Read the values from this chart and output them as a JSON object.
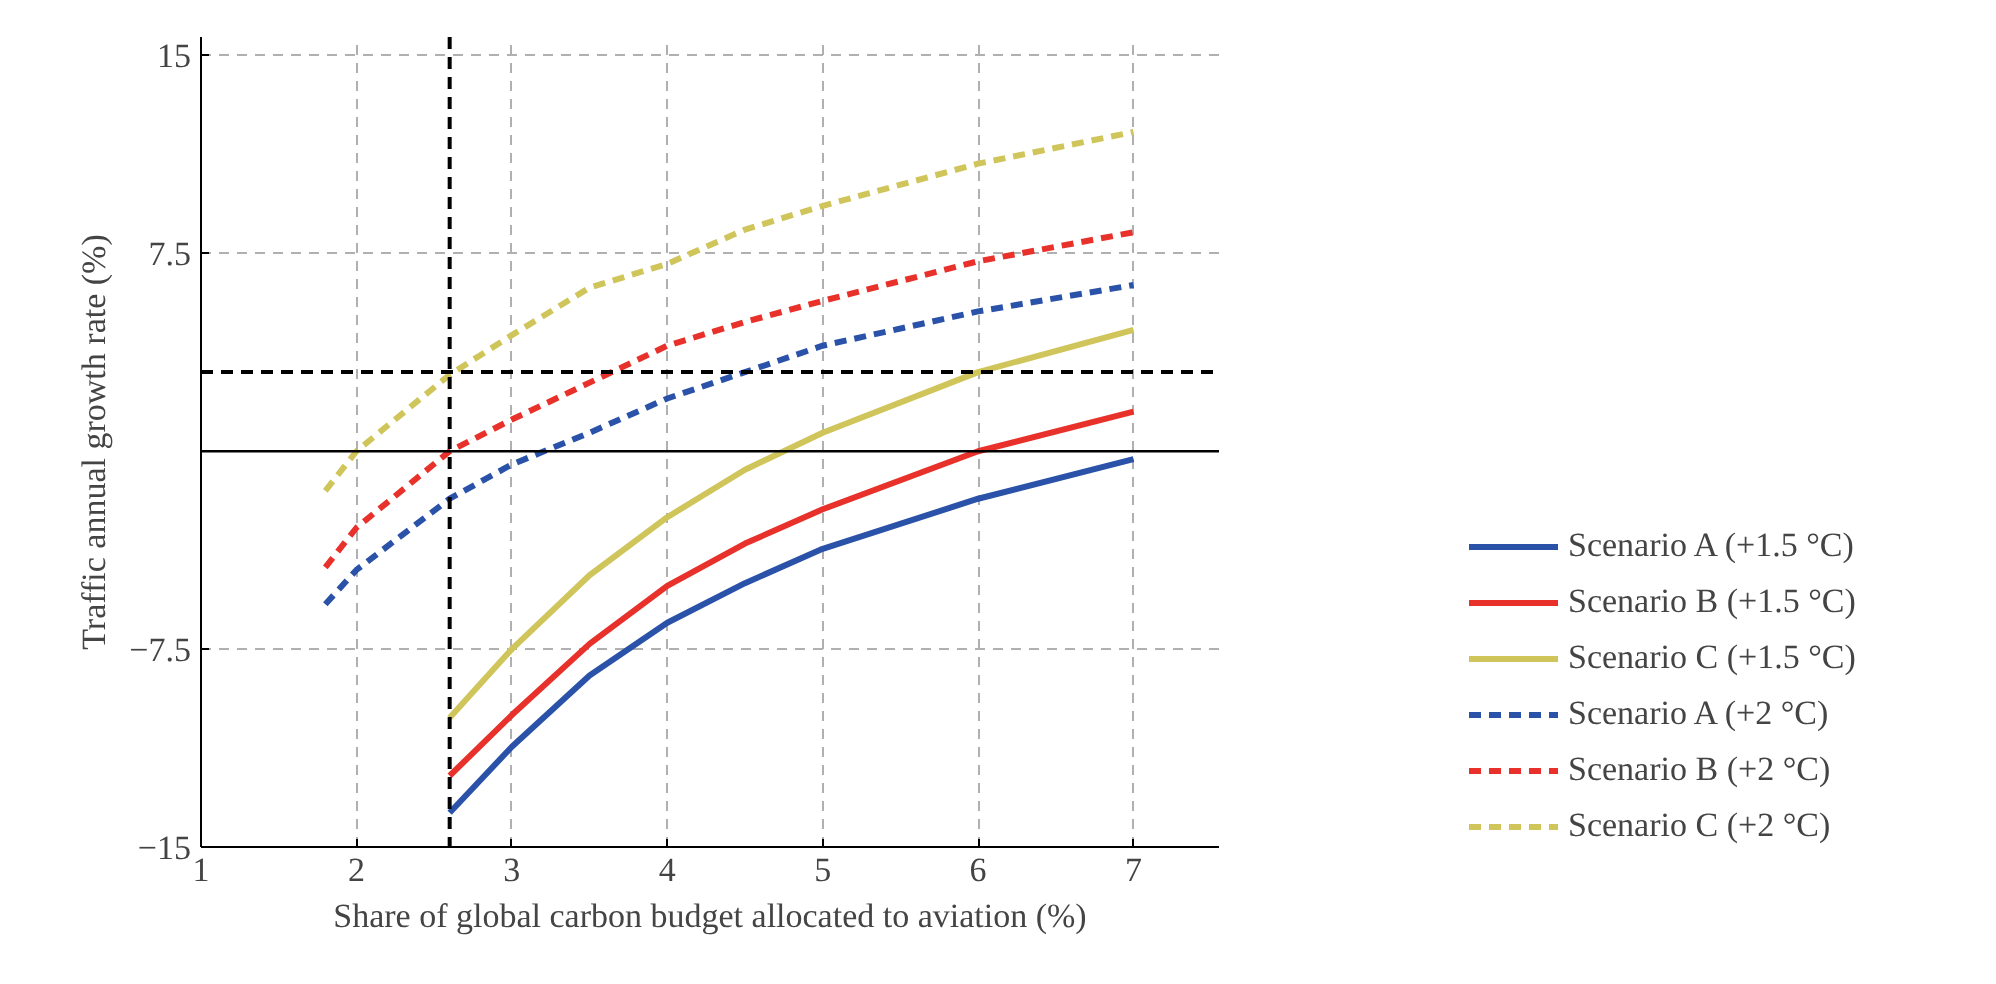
{
  "chart_data": {
    "type": "line",
    "xlabel": "Share of global carbon budget allocated to aviation (%)",
    "ylabel": "Traffic annual growth rate (%)",
    "xlim": [
      1,
      7.55
    ],
    "ylim": [
      -15,
      15.7
    ],
    "xticks": [
      1,
      2,
      3,
      4,
      5,
      6,
      7
    ],
    "yticks": [
      {
        "value": -15,
        "label": "−15"
      },
      {
        "value": -7.5,
        "label": "−7.5"
      },
      7.5,
      15
    ],
    "grid": true,
    "legend": "right",
    "marker": "none",
    "series": [
      {
        "name": "Scenario A (+1.5 °C)",
        "color": "#2a52a8",
        "line_style": "solid",
        "x": [
          2.6,
          3,
          3.5,
          4,
          4.5,
          5,
          6,
          7
        ],
        "values": [
          -13.7,
          -11.2,
          -8.5,
          -6.5,
          -5.0,
          -3.7,
          -1.8,
          -0.3
        ]
      },
      {
        "name": "Scenario B (+1.5 °C)",
        "color": "#e8312a",
        "line_style": "solid",
        "x": [
          2.6,
          3,
          3.5,
          4,
          4.5,
          5,
          6,
          7
        ],
        "values": [
          -12.3,
          -10.0,
          -7.3,
          -5.1,
          -3.5,
          -2.2,
          0,
          1.5
        ]
      },
      {
        "name": "Scenario C (+1.5 °C)",
        "color": "#cfc55a",
        "line_style": "solid",
        "x": [
          2.6,
          3,
          3.5,
          4,
          4.5,
          5,
          6,
          7
        ],
        "values": [
          -10.1,
          -7.5,
          -4.7,
          -2.5,
          -0.7,
          0.7,
          3.0,
          4.6
        ]
      },
      {
        "name": "Scenario A (+2 °C)",
        "color": "#2a52a8",
        "line_style": "dashed",
        "x": [
          1.8,
          2,
          2.6,
          3,
          3.5,
          4,
          4.5,
          5,
          6,
          7
        ],
        "values": [
          -5.8,
          -4.5,
          -1.8,
          -0.5,
          0.7,
          2.0,
          3.0,
          4.0,
          5.3,
          6.3
        ]
      },
      {
        "name": "Scenario B (+2 °C)",
        "color": "#e8312a",
        "line_style": "dashed",
        "x": [
          1.8,
          2,
          2.6,
          3,
          3.5,
          4,
          4.5,
          5,
          6,
          7
        ],
        "values": [
          -4.4,
          -2.9,
          0,
          1.2,
          2.6,
          4.0,
          4.9,
          5.7,
          7.2,
          8.3
        ]
      },
      {
        "name": "Scenario C (+2 °C)",
        "color": "#cfc55a",
        "line_style": "dashed",
        "x": [
          1.8,
          2,
          2.6,
          3,
          3.5,
          4,
          4.5,
          5,
          6,
          7
        ],
        "values": [
          -1.5,
          0,
          2.9,
          4.4,
          6.2,
          7.1,
          8.4,
          9.3,
          10.9,
          12.1
        ]
      }
    ],
    "ref_lines": [
      {
        "axis": "y",
        "value": 0,
        "color": "#000000",
        "line_style": "solid"
      },
      {
        "axis": "y",
        "value": 3,
        "color": "#000000",
        "line_style": "dashed"
      },
      {
        "axis": "x",
        "value": 2.6,
        "color": "#000000",
        "line_style": "dashed"
      }
    ]
  }
}
